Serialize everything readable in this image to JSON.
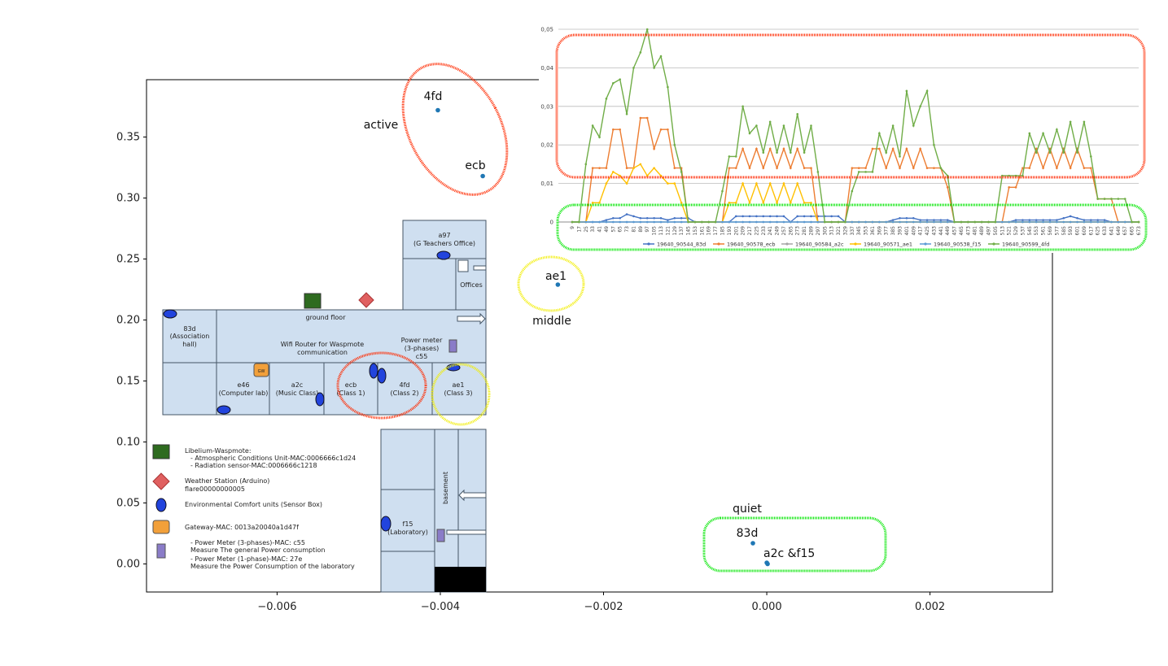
{
  "chart_data": [
    {
      "type": "scatter",
      "title": "",
      "xlabel": "",
      "ylabel": "",
      "xlim": [
        -0.0076,
        0.0035
      ],
      "ylim": [
        -0.023,
        0.397
      ],
      "x_ticks": [
        -0.006,
        -0.004,
        -0.002,
        0.0,
        0.002
      ],
      "x_tick_labels": [
        "−0.006",
        "−0.004",
        "−0.002",
        "0.000",
        "0.002"
      ],
      "y_ticks": [
        0.0,
        0.05,
        0.1,
        0.15,
        0.2,
        0.25,
        0.3,
        0.35
      ],
      "y_tick_labels": [
        "0.00",
        "0.05",
        "0.10",
        "0.15",
        "0.20",
        "0.25",
        "0.30",
        "0.35"
      ],
      "point_color": "#1f77b4",
      "points": [
        {
          "label": "4fd",
          "x": -0.00403,
          "y": 0.372
        },
        {
          "label": "ecb",
          "x": -0.00348,
          "y": 0.318
        },
        {
          "label": "ae1",
          "x": -0.00256,
          "y": 0.229
        },
        {
          "label": "83d",
          "x": -0.00017,
          "y": 0.017
        },
        {
          "label": "a2c",
          "x": 0.0,
          "y": 0.001
        },
        {
          "label": "f15",
          "x": 1e-05,
          "y": 0.0
        }
      ],
      "annotations": [
        {
          "text": "active",
          "color": "#ff2a00"
        },
        {
          "text": "middle",
          "color": "#f2ee00"
        },
        {
          "text": "quiet",
          "color": "#00e600"
        },
        {
          "text": "a2c &f15"
        }
      ]
    },
    {
      "type": "line",
      "title": "",
      "ylim": [
        0,
        0.05
      ],
      "y_tick_labels": [
        "0",
        "0,01",
        "0,02",
        "0,03",
        "0,04",
        "0,05"
      ],
      "x_tick_labels": [
        "9",
        "17",
        "25",
        "33",
        "41",
        "49",
        "57",
        "65",
        "73",
        "81",
        "89",
        "97",
        "105",
        "113",
        "121",
        "129",
        "137",
        "145",
        "153",
        "161",
        "169",
        "177",
        "185",
        "193",
        "201",
        "209",
        "217",
        "225",
        "233",
        "241",
        "249",
        "257",
        "265",
        "273",
        "281",
        "289",
        "297",
        "305",
        "313",
        "321",
        "329",
        "337",
        "345",
        "353",
        "361",
        "369",
        "377",
        "385",
        "393",
        "401",
        "409",
        "417",
        "425",
        "433",
        "441",
        "449",
        "457",
        "465",
        "473",
        "481",
        "489",
        "497",
        "505",
        "513",
        "521",
        "529",
        "537",
        "545",
        "553",
        "561",
        "569",
        "577",
        "585",
        "593",
        "601",
        "609",
        "617",
        "625",
        "633",
        "641",
        "649",
        "657",
        "665",
        "673"
      ],
      "series": [
        {
          "name": "19640_90544_83d",
          "color": "#4472c4",
          "values": [
            0,
            0,
            0,
            0,
            0,
            0.0005,
            0.001,
            0.001,
            0.002,
            0.0015,
            0.001,
            0.001,
            0.001,
            0.001,
            0.0005,
            0.001,
            0.001,
            0.001,
            0,
            0,
            0,
            0,
            0,
            0,
            0.0015,
            0.0015,
            0.0015,
            0.0015,
            0.0015,
            0.0015,
            0.0015,
            0.0015,
            0,
            0.0015,
            0.0015,
            0.0015,
            0.0015,
            0.0015,
            0.0015,
            0.0015,
            0,
            0,
            0,
            0,
            0,
            0,
            0,
            0.0005,
            0.001,
            0.001,
            0.001,
            0.0005,
            0.0005,
            0.0005,
            0.0005,
            0.0005,
            0,
            0,
            0,
            0,
            0,
            0,
            0,
            0,
            0,
            0.0005,
            0.0005,
            0.0005,
            0.0005,
            0.0005,
            0.0005,
            0.0005,
            0.001,
            0.0015,
            0.001,
            0.0005,
            0.0005,
            0.0005,
            0.0005,
            0,
            0,
            0,
            0,
            0
          ]
        },
        {
          "name": "19640_90578_ecb",
          "color": "#ed7d31",
          "values": [
            0,
            0,
            0,
            0.014,
            0.014,
            0.014,
            0.024,
            0.024,
            0.014,
            0.014,
            0.027,
            0.027,
            0.019,
            0.024,
            0.024,
            0.014,
            0.014,
            0,
            0,
            0,
            0,
            0,
            0,
            0.014,
            0.014,
            0.019,
            0.014,
            0.019,
            0.014,
            0.019,
            0.014,
            0.019,
            0.014,
            0.019,
            0.014,
            0.014,
            0,
            0,
            0,
            0,
            0,
            0.014,
            0.014,
            0.014,
            0.019,
            0.019,
            0.014,
            0.019,
            0.014,
            0.019,
            0.014,
            0.019,
            0.014,
            0.014,
            0.014,
            0.009,
            0,
            0,
            0,
            0,
            0,
            0,
            0,
            0,
            0.009,
            0.009,
            0.014,
            0.014,
            0.019,
            0.014,
            0.019,
            0.014,
            0.019,
            0.014,
            0.019,
            0.014,
            0.014,
            0.006,
            0.006,
            0.006,
            0,
            0,
            0,
            0
          ]
        },
        {
          "name": "19640_90584_a2c",
          "color": "#a5a5a5",
          "values": [
            0,
            0,
            0,
            0,
            0,
            0,
            0,
            0,
            0,
            0,
            0,
            0,
            0,
            0,
            0,
            0,
            0,
            0,
            0,
            0,
            0,
            0,
            0,
            0,
            0,
            0,
            0,
            0,
            0,
            0,
            0,
            0,
            0,
            0,
            0,
            0,
            0,
            0,
            0,
            0,
            0,
            0,
            0,
            0,
            0,
            0,
            0,
            0,
            0,
            0,
            0,
            0,
            0,
            0,
            0,
            0,
            0,
            0,
            0,
            0,
            0,
            0,
            0,
            0,
            0,
            0,
            0,
            0,
            0,
            0,
            0,
            0,
            0,
            0,
            0,
            0,
            0,
            0,
            0,
            0,
            0,
            0,
            0,
            0
          ]
        },
        {
          "name": "19640_90571_ae1",
          "color": "#ffc000",
          "values": [
            0,
            0,
            0,
            0.005,
            0.005,
            0.01,
            0.013,
            0.012,
            0.01,
            0.014,
            0.015,
            0.012,
            0.014,
            0.012,
            0.01,
            0.01,
            0.005,
            0,
            0,
            0,
            0,
            0,
            0,
            0.005,
            0.005,
            0.01,
            0.005,
            0.01,
            0.005,
            0.01,
            0.005,
            0.01,
            0.005,
            0.01,
            0.005,
            0.005,
            0,
            0,
            0,
            0,
            0,
            0,
            0,
            0,
            0,
            0,
            0,
            0,
            0,
            0,
            0,
            0,
            0,
            0,
            0,
            0,
            0,
            0,
            0,
            0,
            0,
            0,
            0,
            0,
            0,
            0,
            0,
            0,
            0,
            0,
            0,
            0,
            0,
            0,
            0,
            0,
            0,
            0,
            0,
            0,
            0,
            0,
            0,
            0
          ]
        },
        {
          "name": "19640_90538_f15",
          "color": "#5b9bd5",
          "values": [
            0,
            0,
            0,
            0,
            0,
            0,
            0,
            0,
            0,
            0,
            0,
            0,
            0,
            0,
            0,
            0,
            0,
            0,
            0,
            0,
            0,
            0,
            0,
            0,
            0,
            0,
            0,
            0,
            0,
            0,
            0,
            0,
            0,
            0,
            0,
            0,
            0,
            0,
            0,
            0,
            0,
            0,
            0,
            0,
            0,
            0,
            0,
            0,
            0,
            0,
            0,
            0,
            0,
            0,
            0,
            0,
            0,
            0,
            0,
            0,
            0,
            0,
            0,
            0,
            0,
            0,
            0,
            0,
            0,
            0,
            0,
            0,
            0,
            0,
            0,
            0,
            0,
            0,
            0,
            0,
            0,
            0,
            0,
            0
          ]
        },
        {
          "name": "19640_90599_4fd",
          "color": "#70ad47",
          "values": [
            0,
            0,
            0.015,
            0.025,
            0.022,
            0.032,
            0.036,
            0.037,
            0.028,
            0.04,
            0.044,
            0.05,
            0.04,
            0.043,
            0.035,
            0.02,
            0.013,
            0,
            0,
            0,
            0,
            0,
            0.008,
            0.017,
            0.017,
            0.03,
            0.023,
            0.025,
            0.018,
            0.026,
            0.018,
            0.025,
            0.018,
            0.028,
            0.018,
            0.025,
            0.013,
            0,
            0,
            0,
            0,
            0.008,
            0.013,
            0.013,
            0.013,
            0.023,
            0.018,
            0.025,
            0.017,
            0.034,
            0.025,
            0.03,
            0.034,
            0.02,
            0.014,
            0.012,
            0,
            0,
            0,
            0,
            0,
            0,
            0,
            0.012,
            0.012,
            0.012,
            0.012,
            0.023,
            0.018,
            0.023,
            0.018,
            0.024,
            0.018,
            0.026,
            0.018,
            0.026,
            0.017,
            0.006,
            0.006,
            0.006,
            0.006,
            0.006,
            0,
            0
          ]
        }
      ]
    }
  ],
  "floorplan": {
    "rooms": {
      "a97": [
        "a97",
        "(G Teachers Office)"
      ],
      "offices": [
        "Offices"
      ],
      "ground_floor": [
        "ground floor"
      ],
      "r83d": [
        "83d",
        "(Association",
        "hall)"
      ],
      "wifi": [
        "Wifi Router for Waspmote",
        "communication"
      ],
      "power_meter": [
        "Power meter",
        "(3-phases)",
        "c55"
      ],
      "e46": [
        "e46",
        "(Computer lab)"
      ],
      "a2c": [
        "a2c",
        "(Music Class)"
      ],
      "ecb": [
        "ecb",
        "(Class 1)"
      ],
      "r4fd": [
        "4fd",
        "(Class  2)"
      ],
      "ae1": [
        "ae1",
        "(Class 3)"
      ],
      "f15": [
        "f15",
        "(Laboratory)"
      ],
      "basement": [
        "basement"
      ]
    },
    "gateway_badge": "GW",
    "legend": [
      {
        "icon": "green-square-icon",
        "lines": [
          "Libelium-Waspmote:",
          "-    Atmospheric Conditions Unit-MAC:0006666c1d24",
          "-    Radiation sensor-MAC:0006666c1218"
        ]
      },
      {
        "icon": "red-diamond-icon",
        "lines": [
          "Weather Station (Arduino)",
          "flare00000000005"
        ]
      },
      {
        "icon": "blue-ellipse-icon",
        "lines": [
          "Environmental Comfort units (Sensor Box)"
        ]
      },
      {
        "icon": "orange-gateway-icon",
        "lines": [
          "Gateway-MAC: 0013a20040a1d47f"
        ]
      },
      {
        "icon": "purple-rect-icon",
        "lines": [
          "-    Power Meter (3-phases)-MAC: c55",
          "     Measure The general Power consumption",
          "-    Power Meter (1-phase)-MAC: 27e",
          "     Measure the Power Consumption of the laboratory"
        ]
      }
    ]
  }
}
